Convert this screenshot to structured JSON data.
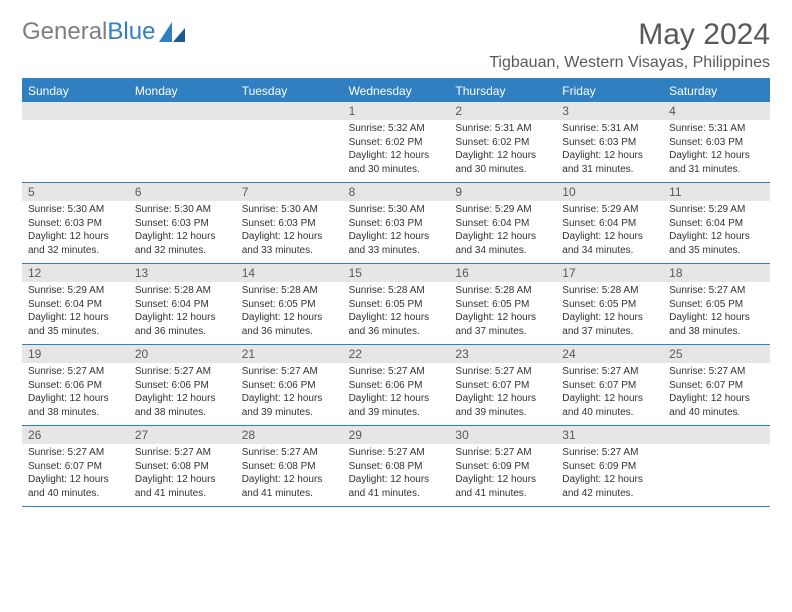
{
  "logo": {
    "part1": "General",
    "part2": "Blue"
  },
  "title": "May 2024",
  "location": "Tigbauan, Western Visayas, Philippines",
  "colors": {
    "header_bg": "#2f7fc1",
    "header_fg": "#ffffff",
    "daynum_bg": "#e6e6e6",
    "daynum_fg": "#595959",
    "body_bg": "#ffffff",
    "text": "#333333",
    "logo_gray": "#7e7e7e",
    "logo_blue": "#2f7fc1"
  },
  "day_names": [
    "Sunday",
    "Monday",
    "Tuesday",
    "Wednesday",
    "Thursday",
    "Friday",
    "Saturday"
  ],
  "weeks": [
    [
      {
        "num": "",
        "lines": []
      },
      {
        "num": "",
        "lines": []
      },
      {
        "num": "",
        "lines": []
      },
      {
        "num": "1",
        "lines": [
          "Sunrise: 5:32 AM",
          "Sunset: 6:02 PM",
          "Daylight: 12 hours and 30 minutes."
        ]
      },
      {
        "num": "2",
        "lines": [
          "Sunrise: 5:31 AM",
          "Sunset: 6:02 PM",
          "Daylight: 12 hours and 30 minutes."
        ]
      },
      {
        "num": "3",
        "lines": [
          "Sunrise: 5:31 AM",
          "Sunset: 6:03 PM",
          "Daylight: 12 hours and 31 minutes."
        ]
      },
      {
        "num": "4",
        "lines": [
          "Sunrise: 5:31 AM",
          "Sunset: 6:03 PM",
          "Daylight: 12 hours and 31 minutes."
        ]
      }
    ],
    [
      {
        "num": "5",
        "lines": [
          "Sunrise: 5:30 AM",
          "Sunset: 6:03 PM",
          "Daylight: 12 hours and 32 minutes."
        ]
      },
      {
        "num": "6",
        "lines": [
          "Sunrise: 5:30 AM",
          "Sunset: 6:03 PM",
          "Daylight: 12 hours and 32 minutes."
        ]
      },
      {
        "num": "7",
        "lines": [
          "Sunrise: 5:30 AM",
          "Sunset: 6:03 PM",
          "Daylight: 12 hours and 33 minutes."
        ]
      },
      {
        "num": "8",
        "lines": [
          "Sunrise: 5:30 AM",
          "Sunset: 6:03 PM",
          "Daylight: 12 hours and 33 minutes."
        ]
      },
      {
        "num": "9",
        "lines": [
          "Sunrise: 5:29 AM",
          "Sunset: 6:04 PM",
          "Daylight: 12 hours and 34 minutes."
        ]
      },
      {
        "num": "10",
        "lines": [
          "Sunrise: 5:29 AM",
          "Sunset: 6:04 PM",
          "Daylight: 12 hours and 34 minutes."
        ]
      },
      {
        "num": "11",
        "lines": [
          "Sunrise: 5:29 AM",
          "Sunset: 6:04 PM",
          "Daylight: 12 hours and 35 minutes."
        ]
      }
    ],
    [
      {
        "num": "12",
        "lines": [
          "Sunrise: 5:29 AM",
          "Sunset: 6:04 PM",
          "Daylight: 12 hours and 35 minutes."
        ]
      },
      {
        "num": "13",
        "lines": [
          "Sunrise: 5:28 AM",
          "Sunset: 6:04 PM",
          "Daylight: 12 hours and 36 minutes."
        ]
      },
      {
        "num": "14",
        "lines": [
          "Sunrise: 5:28 AM",
          "Sunset: 6:05 PM",
          "Daylight: 12 hours and 36 minutes."
        ]
      },
      {
        "num": "15",
        "lines": [
          "Sunrise: 5:28 AM",
          "Sunset: 6:05 PM",
          "Daylight: 12 hours and 36 minutes."
        ]
      },
      {
        "num": "16",
        "lines": [
          "Sunrise: 5:28 AM",
          "Sunset: 6:05 PM",
          "Daylight: 12 hours and 37 minutes."
        ]
      },
      {
        "num": "17",
        "lines": [
          "Sunrise: 5:28 AM",
          "Sunset: 6:05 PM",
          "Daylight: 12 hours and 37 minutes."
        ]
      },
      {
        "num": "18",
        "lines": [
          "Sunrise: 5:27 AM",
          "Sunset: 6:05 PM",
          "Daylight: 12 hours and 38 minutes."
        ]
      }
    ],
    [
      {
        "num": "19",
        "lines": [
          "Sunrise: 5:27 AM",
          "Sunset: 6:06 PM",
          "Daylight: 12 hours and 38 minutes."
        ]
      },
      {
        "num": "20",
        "lines": [
          "Sunrise: 5:27 AM",
          "Sunset: 6:06 PM",
          "Daylight: 12 hours and 38 minutes."
        ]
      },
      {
        "num": "21",
        "lines": [
          "Sunrise: 5:27 AM",
          "Sunset: 6:06 PM",
          "Daylight: 12 hours and 39 minutes."
        ]
      },
      {
        "num": "22",
        "lines": [
          "Sunrise: 5:27 AM",
          "Sunset: 6:06 PM",
          "Daylight: 12 hours and 39 minutes."
        ]
      },
      {
        "num": "23",
        "lines": [
          "Sunrise: 5:27 AM",
          "Sunset: 6:07 PM",
          "Daylight: 12 hours and 39 minutes."
        ]
      },
      {
        "num": "24",
        "lines": [
          "Sunrise: 5:27 AM",
          "Sunset: 6:07 PM",
          "Daylight: 12 hours and 40 minutes."
        ]
      },
      {
        "num": "25",
        "lines": [
          "Sunrise: 5:27 AM",
          "Sunset: 6:07 PM",
          "Daylight: 12 hours and 40 minutes."
        ]
      }
    ],
    [
      {
        "num": "26",
        "lines": [
          "Sunrise: 5:27 AM",
          "Sunset: 6:07 PM",
          "Daylight: 12 hours and 40 minutes."
        ]
      },
      {
        "num": "27",
        "lines": [
          "Sunrise: 5:27 AM",
          "Sunset: 6:08 PM",
          "Daylight: 12 hours and 41 minutes."
        ]
      },
      {
        "num": "28",
        "lines": [
          "Sunrise: 5:27 AM",
          "Sunset: 6:08 PM",
          "Daylight: 12 hours and 41 minutes."
        ]
      },
      {
        "num": "29",
        "lines": [
          "Sunrise: 5:27 AM",
          "Sunset: 6:08 PM",
          "Daylight: 12 hours and 41 minutes."
        ]
      },
      {
        "num": "30",
        "lines": [
          "Sunrise: 5:27 AM",
          "Sunset: 6:09 PM",
          "Daylight: 12 hours and 41 minutes."
        ]
      },
      {
        "num": "31",
        "lines": [
          "Sunrise: 5:27 AM",
          "Sunset: 6:09 PM",
          "Daylight: 12 hours and 42 minutes."
        ]
      },
      {
        "num": "",
        "lines": []
      }
    ]
  ]
}
